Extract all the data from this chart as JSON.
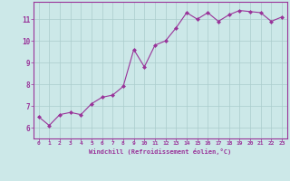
{
  "x": [
    0,
    1,
    2,
    3,
    4,
    5,
    6,
    7,
    8,
    9,
    10,
    11,
    12,
    13,
    14,
    15,
    16,
    17,
    18,
    19,
    20,
    21,
    22,
    23
  ],
  "y": [
    6.5,
    6.1,
    6.6,
    6.7,
    6.6,
    7.1,
    7.4,
    7.5,
    7.9,
    9.6,
    8.8,
    9.8,
    10.0,
    10.6,
    11.3,
    11.0,
    11.3,
    10.9,
    11.2,
    11.4,
    11.35,
    11.3,
    10.9,
    11.1
  ],
  "line_color": "#993399",
  "marker": "D",
  "marker_size": 2.0,
  "bg_color": "#cce8e8",
  "grid_color": "#aacccc",
  "xlabel": "Windchill (Refroidissement éolien,°C)",
  "xlabel_color": "#993399",
  "tick_color": "#993399",
  "xlim": [
    -0.5,
    23.5
  ],
  "ylim": [
    5.5,
    11.8
  ],
  "yticks": [
    6,
    7,
    8,
    9,
    10,
    11
  ],
  "xticks": [
    0,
    1,
    2,
    3,
    4,
    5,
    6,
    7,
    8,
    9,
    10,
    11,
    12,
    13,
    14,
    15,
    16,
    17,
    18,
    19,
    20,
    21,
    22,
    23
  ],
  "spine_color": "#993399",
  "linewidth": 0.8
}
